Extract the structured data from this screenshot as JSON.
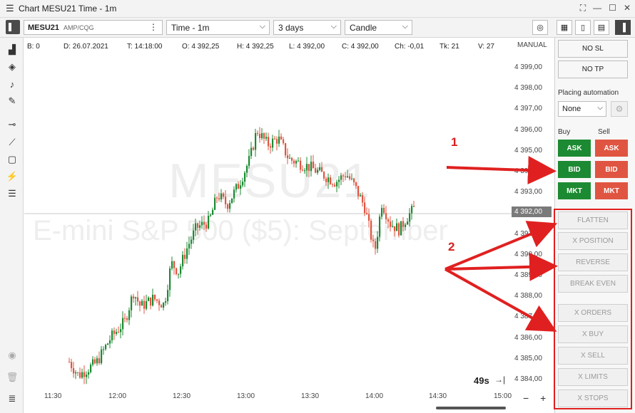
{
  "window": {
    "title": "Chart MESU21 Time - 1m"
  },
  "toolbar": {
    "symbol": "MESU21",
    "feed": "AMP/CQG",
    "timeframe": "Time - 1m",
    "range": "3 days",
    "chart_type": "Candle"
  },
  "infobar": {
    "b": "B: 0",
    "d": "D: 26.07.2021",
    "t": "T: 14:18:00",
    "o": "O: 4 392,25",
    "h": "H: 4 392,25",
    "l": "L: 4 392,00",
    "c": "C: 4 392,00",
    "ch": "Ch: -0,01",
    "tk": "Tk: 21",
    "v": "V: 27"
  },
  "watermark": {
    "line1": "MESU21",
    "line2": "E-mini S&P 500 ($5): September"
  },
  "axis": {
    "mode": "MANUAL",
    "y_ticks": [
      "4 399,00",
      "4 398,00",
      "4 397,00",
      "4 396,00",
      "4 395,00",
      "4 394,00",
      "4 393,00",
      "4 392,00",
      "4 391,00",
      "4 390,00",
      "4 389,00",
      "4 388,00",
      "4 387,00",
      "4 386,00",
      "4 385,00",
      "4 384,00"
    ],
    "current_price": "4 392,00",
    "x_ticks": [
      "11:30",
      "12:00",
      "12:30",
      "13:00",
      "13:30",
      "14:00",
      "14:30",
      "15:00"
    ],
    "timer": "49s"
  },
  "panel": {
    "no_sl": "NO SL",
    "no_tp": "NO TP",
    "placing_automation_label": "Placing automation",
    "automation_value": "None",
    "buy_label": "Buy",
    "sell_label": "Sell",
    "ask": "ASK",
    "bid": "BID",
    "mkt": "MKT",
    "flatten": "FLATTEN",
    "x_position": "X POSITION",
    "reverse": "REVERSE",
    "break_even": "BREAK EVEN",
    "x_orders": "X ORDERS",
    "x_buy": "X BUY",
    "x_sell": "X SELL",
    "x_limits": "X LIMITS",
    "x_stops": "X STOPS"
  },
  "annotations": {
    "one": "1",
    "two": "2"
  },
  "colors": {
    "up": "#1c8a32",
    "down": "#e05541",
    "annotation": "#e02020"
  }
}
